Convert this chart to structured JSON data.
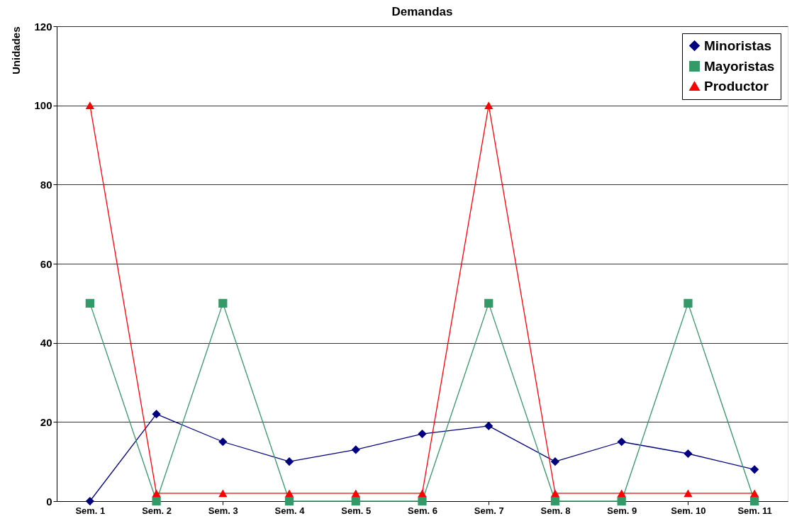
{
  "chart_data": {
    "type": "line",
    "title": "Demandas",
    "ylabel": "Unidades",
    "categories": [
      "Sem. 1",
      "Sem. 2",
      "Sem. 3",
      "Sem. 4",
      "Sem. 5",
      "Sem. 6",
      "Sem. 7",
      "Sem. 8",
      "Sem. 9",
      "Sem. 10",
      "Sem. 11"
    ],
    "series": [
      {
        "name": "Minoristas",
        "color": "#000080",
        "marker": "diamond",
        "values": [
          0,
          22,
          15,
          10,
          13,
          17,
          19,
          10,
          15,
          12,
          8
        ]
      },
      {
        "name": "Mayoristas",
        "color": "#339966",
        "marker": "square",
        "values": [
          50,
          0,
          50,
          0,
          0,
          0,
          50,
          0,
          0,
          50,
          0
        ]
      },
      {
        "name": "Productor",
        "color": "#ff0000",
        "marker": "triangle",
        "values": [
          100,
          2,
          2,
          2,
          2,
          2,
          100,
          2,
          2,
          2,
          2
        ]
      }
    ],
    "ylim": [
      0,
      120
    ],
    "yticks": [
      0,
      20,
      40,
      60,
      80,
      100,
      120
    ],
    "grid": "y",
    "legend": "top right",
    "line_style": "solid"
  }
}
